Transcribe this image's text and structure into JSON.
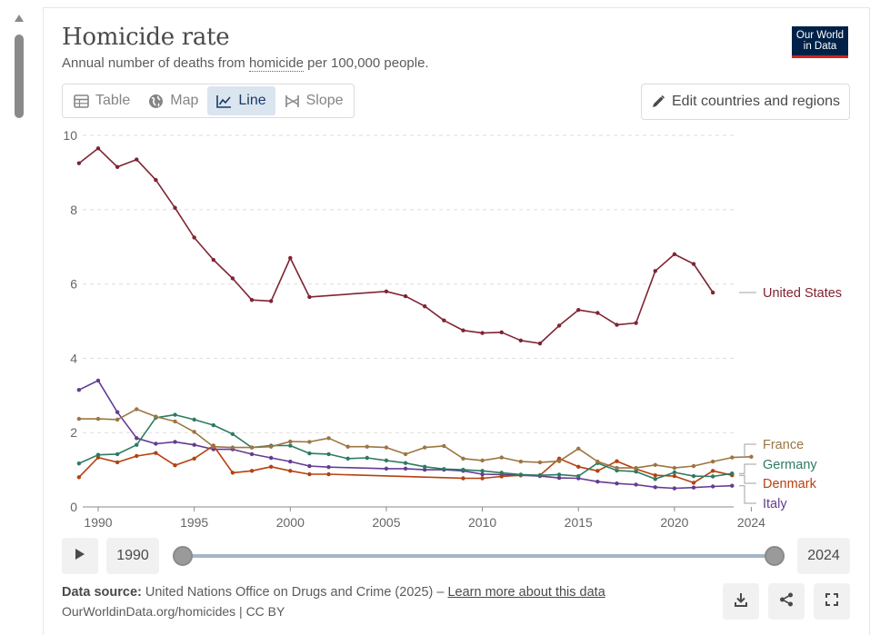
{
  "header": {
    "title": "Homicide rate",
    "subtitle_prefix": "Annual number of deaths from ",
    "subtitle_term": "homicide",
    "subtitle_suffix": " per 100,000 people.",
    "logo_line1": "Our World",
    "logo_line2": "in Data"
  },
  "tabs": [
    {
      "label": "Table",
      "icon": "table-icon",
      "active": false
    },
    {
      "label": "Map",
      "icon": "globe-icon",
      "active": false
    },
    {
      "label": "Line",
      "icon": "line-chart-icon",
      "active": true
    },
    {
      "label": "Slope",
      "icon": "slope-icon",
      "active": false
    }
  ],
  "edit_button": {
    "label": "Edit countries and regions",
    "icon": "pencil-icon"
  },
  "colors": {
    "United States": "#7f2431",
    "France": "#9b7642",
    "Germany": "#2d7b61",
    "Denmark": "#b5410f",
    "Italy": "#643b91",
    "grid": "#dddddd",
    "active_tab_bg": "#dbe5f0"
  },
  "timeline": {
    "start_year": "1990",
    "end_year": "2024"
  },
  "footer": {
    "source_label": "Data source:",
    "source_text": " United Nations Office on Drugs and Crime (2025) – ",
    "learn_more": "Learn more about this data",
    "url": "OurWorldinData.org/homicides | CC BY"
  },
  "chart_data": {
    "type": "line",
    "title": "Homicide rate",
    "subtitle": "Annual number of deaths from homicide per 100,000 people.",
    "xlim": [
      1990,
      2024
    ],
    "ylim": [
      0,
      10
    ],
    "x_ticks": [
      1990,
      1995,
      2000,
      2005,
      2010,
      2015,
      2020,
      2024
    ],
    "y_ticks": [
      0,
      2,
      4,
      6,
      8,
      10
    ],
    "grid": "horizontal dashed",
    "legend": "right, labels at line ends",
    "series": [
      {
        "name": "United States",
        "points": [
          [
            1989,
            9.25
          ],
          [
            1990,
            9.65
          ],
          [
            1991,
            9.15
          ],
          [
            1992,
            9.35
          ],
          [
            1993,
            8.8
          ],
          [
            1994,
            8.05
          ],
          [
            1995,
            7.25
          ],
          [
            1996,
            6.65
          ],
          [
            1997,
            6.15
          ],
          [
            1998,
            5.57
          ],
          [
            1999,
            5.54
          ],
          [
            2000,
            6.7
          ],
          [
            2001,
            5.65
          ],
          [
            2005,
            5.8
          ],
          [
            2006,
            5.67
          ],
          [
            2007,
            5.4
          ],
          [
            2008,
            5.02
          ],
          [
            2009,
            4.75
          ],
          [
            2010,
            4.68
          ],
          [
            2011,
            4.7
          ],
          [
            2012,
            4.48
          ],
          [
            2013,
            4.4
          ],
          [
            2014,
            4.88
          ],
          [
            2015,
            5.3
          ],
          [
            2016,
            5.22
          ],
          [
            2017,
            4.9
          ],
          [
            2018,
            4.95
          ],
          [
            2019,
            6.35
          ],
          [
            2020,
            6.8
          ],
          [
            2021,
            6.54
          ],
          [
            2022,
            5.77
          ]
        ]
      },
      {
        "name": "France",
        "points": [
          [
            1989,
            2.37
          ],
          [
            1990,
            2.37
          ],
          [
            1991,
            2.35
          ],
          [
            1992,
            2.63
          ],
          [
            1993,
            2.43
          ],
          [
            1994,
            2.3
          ],
          [
            1995,
            2.02
          ],
          [
            1996,
            1.62
          ],
          [
            1997,
            1.6
          ],
          [
            1998,
            1.6
          ],
          [
            1999,
            1.62
          ],
          [
            2000,
            1.76
          ],
          [
            2001,
            1.75
          ],
          [
            2002,
            1.85
          ],
          [
            2003,
            1.62
          ],
          [
            2004,
            1.62
          ],
          [
            2005,
            1.6
          ],
          [
            2006,
            1.42
          ],
          [
            2007,
            1.6
          ],
          [
            2008,
            1.64
          ],
          [
            2009,
            1.3
          ],
          [
            2010,
            1.25
          ],
          [
            2011,
            1.33
          ],
          [
            2012,
            1.22
          ],
          [
            2013,
            1.2
          ],
          [
            2014,
            1.23
          ],
          [
            2015,
            1.57
          ],
          [
            2016,
            1.22
          ],
          [
            2017,
            1.05
          ],
          [
            2018,
            1.05
          ],
          [
            2019,
            1.13
          ],
          [
            2020,
            1.05
          ],
          [
            2021,
            1.1
          ],
          [
            2022,
            1.22
          ],
          [
            2023,
            1.33
          ],
          [
            2024,
            1.35
          ]
        ]
      },
      {
        "name": "Germany",
        "points": [
          [
            1989,
            1.17
          ],
          [
            1990,
            1.4
          ],
          [
            1991,
            1.42
          ],
          [
            1992,
            1.67
          ],
          [
            1993,
            2.4
          ],
          [
            1994,
            2.48
          ],
          [
            1995,
            2.35
          ],
          [
            1996,
            2.2
          ],
          [
            1997,
            1.96
          ],
          [
            1998,
            1.6
          ],
          [
            1999,
            1.65
          ],
          [
            2000,
            1.65
          ],
          [
            2001,
            1.44
          ],
          [
            2002,
            1.42
          ],
          [
            2003,
            1.3
          ],
          [
            2004,
            1.32
          ],
          [
            2005,
            1.25
          ],
          [
            2006,
            1.18
          ],
          [
            2007,
            1.08
          ],
          [
            2008,
            1.02
          ],
          [
            2009,
            1.0
          ],
          [
            2010,
            0.97
          ],
          [
            2011,
            0.92
          ],
          [
            2012,
            0.87
          ],
          [
            2013,
            0.85
          ],
          [
            2014,
            0.87
          ],
          [
            2015,
            0.83
          ],
          [
            2016,
            1.18
          ],
          [
            2017,
            0.98
          ],
          [
            2018,
            0.95
          ],
          [
            2019,
            0.75
          ],
          [
            2020,
            0.93
          ],
          [
            2021,
            0.83
          ],
          [
            2022,
            0.82
          ],
          [
            2023,
            0.9
          ]
        ]
      },
      {
        "name": "Denmark",
        "points": [
          [
            1989,
            0.8
          ],
          [
            1990,
            1.33
          ],
          [
            1991,
            1.2
          ],
          [
            1992,
            1.37
          ],
          [
            1993,
            1.45
          ],
          [
            1994,
            1.12
          ],
          [
            1995,
            1.3
          ],
          [
            1996,
            1.65
          ],
          [
            1997,
            0.92
          ],
          [
            1998,
            0.97
          ],
          [
            1999,
            1.08
          ],
          [
            2000,
            0.97
          ],
          [
            2001,
            0.88
          ],
          [
            2002,
            0.88
          ],
          [
            2009,
            0.77
          ],
          [
            2010,
            0.77
          ],
          [
            2011,
            0.82
          ],
          [
            2012,
            0.85
          ],
          [
            2013,
            0.85
          ],
          [
            2014,
            1.3
          ],
          [
            2015,
            1.08
          ],
          [
            2016,
            0.97
          ],
          [
            2017,
            1.23
          ],
          [
            2018,
            1.02
          ],
          [
            2019,
            0.85
          ],
          [
            2020,
            0.83
          ],
          [
            2021,
            0.65
          ],
          [
            2022,
            0.97
          ],
          [
            2023,
            0.85
          ]
        ]
      },
      {
        "name": "Italy",
        "points": [
          [
            1989,
            3.15
          ],
          [
            1990,
            3.4
          ],
          [
            1991,
            2.55
          ],
          [
            1992,
            1.85
          ],
          [
            1993,
            1.7
          ],
          [
            1994,
            1.75
          ],
          [
            1995,
            1.67
          ],
          [
            1996,
            1.55
          ],
          [
            1997,
            1.55
          ],
          [
            1998,
            1.42
          ],
          [
            1999,
            1.32
          ],
          [
            2000,
            1.22
          ],
          [
            2001,
            1.1
          ],
          [
            2002,
            1.07
          ],
          [
            2005,
            1.03
          ],
          [
            2006,
            1.03
          ],
          [
            2007,
            1.0
          ],
          [
            2008,
            1.0
          ],
          [
            2009,
            0.97
          ],
          [
            2010,
            0.88
          ],
          [
            2011,
            0.87
          ],
          [
            2012,
            0.85
          ],
          [
            2013,
            0.83
          ],
          [
            2014,
            0.78
          ],
          [
            2015,
            0.77
          ],
          [
            2016,
            0.68
          ],
          [
            2017,
            0.63
          ],
          [
            2018,
            0.6
          ],
          [
            2019,
            0.53
          ],
          [
            2020,
            0.5
          ],
          [
            2021,
            0.52
          ],
          [
            2022,
            0.55
          ],
          [
            2023,
            0.57
          ]
        ]
      }
    ],
    "end_labels": [
      "United States",
      "France",
      "Germany",
      "Denmark",
      "Italy"
    ]
  }
}
